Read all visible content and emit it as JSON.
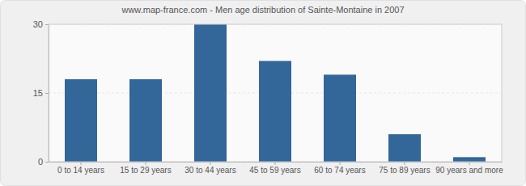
{
  "chart_data": {
    "type": "bar",
    "title": "www.map-france.com - Men age distribution of Sainte-Montaine in 2007",
    "categories": [
      "0 to 14 years",
      "15 to 29 years",
      "30 to 44 years",
      "45 to 59 years",
      "60 to 74 years",
      "75 to 89 years",
      "90 years and more"
    ],
    "values": [
      18,
      18,
      30,
      22,
      19,
      6,
      1
    ],
    "color": "#336699",
    "ylim": [
      0,
      30
    ],
    "yticks": [
      0,
      15,
      30
    ],
    "grid": true
  }
}
